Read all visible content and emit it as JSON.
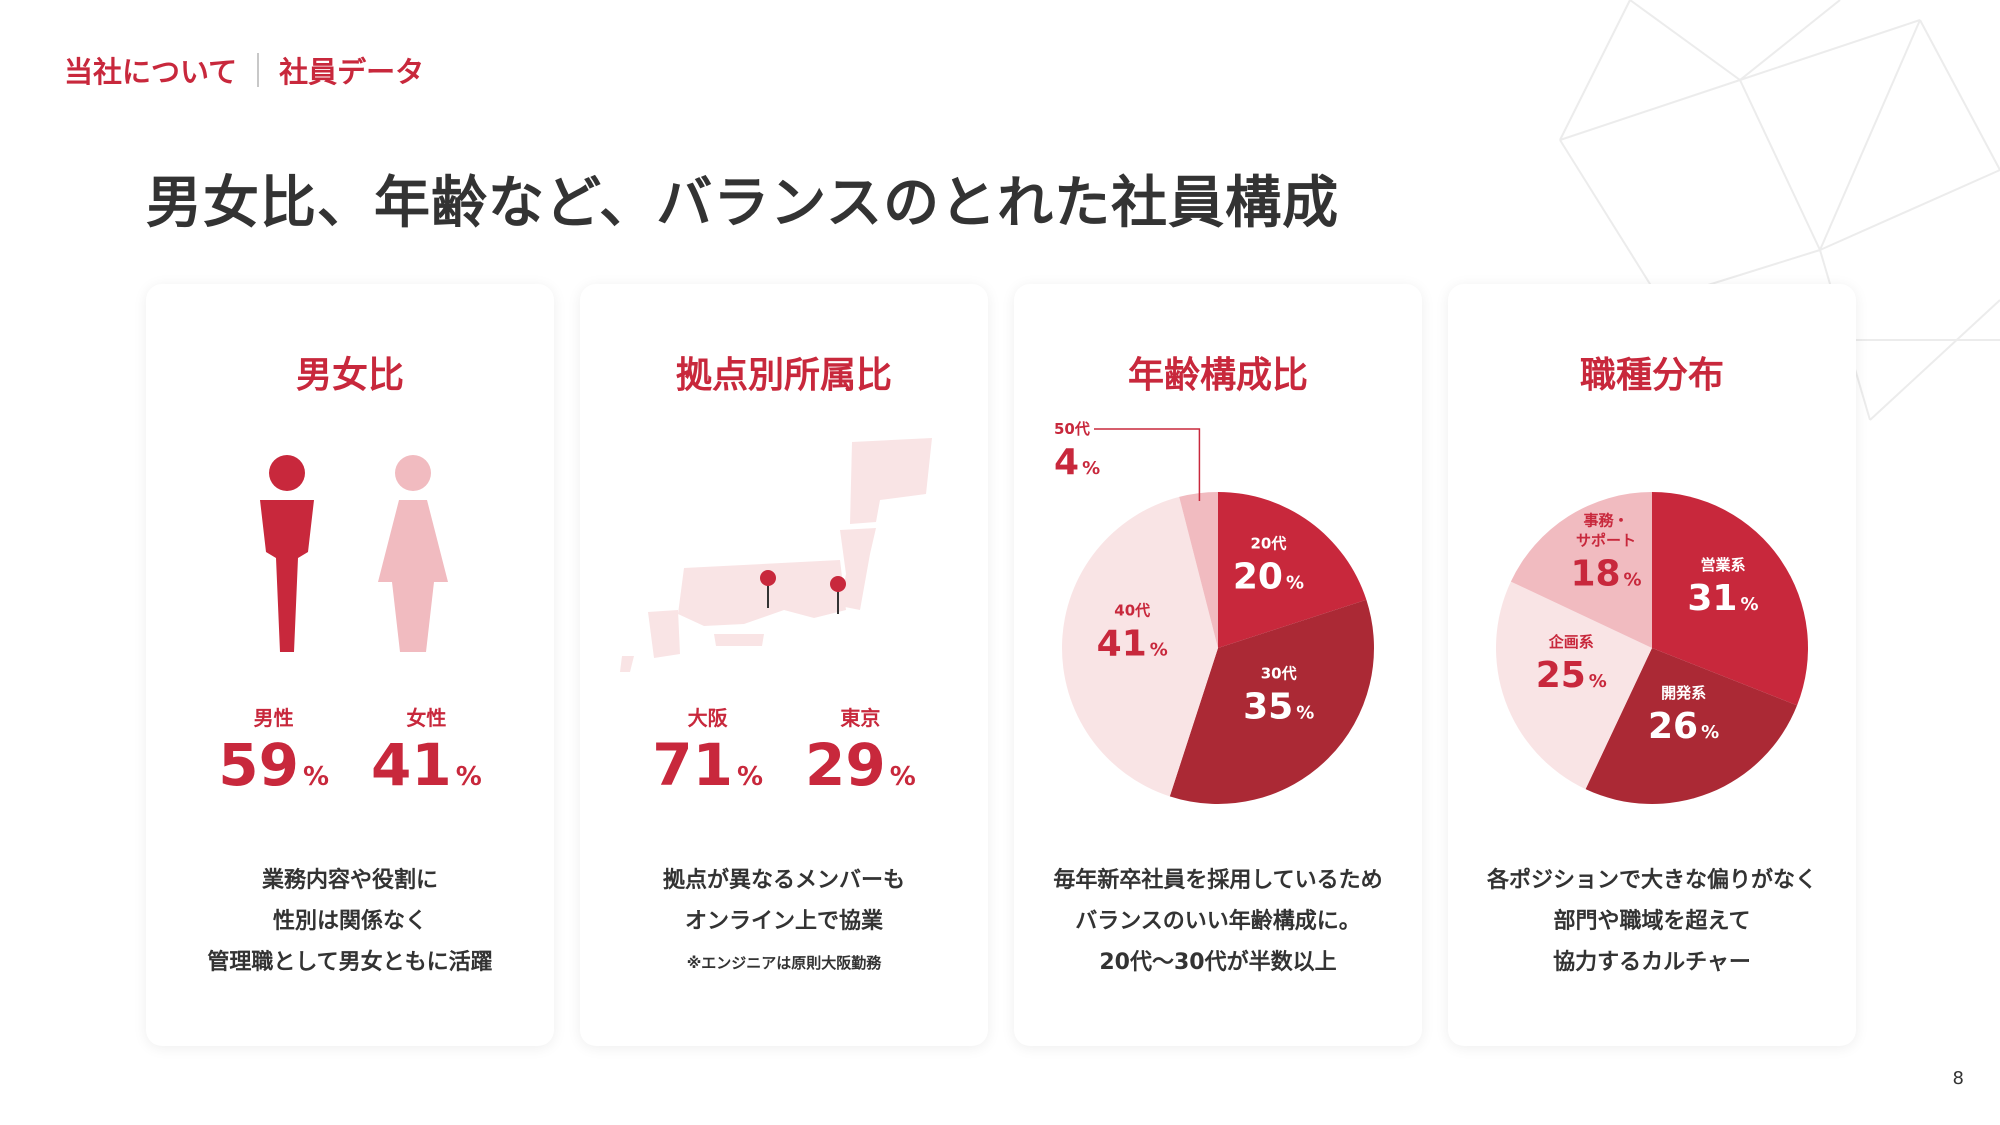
{
  "breadcrumb": {
    "section": "当社について",
    "page": "社員データ"
  },
  "title": "男女比、年齢など、バランスのとれた社員構成",
  "page_number": "8",
  "colors": {
    "accent": "#c8283c",
    "dark": "#ab2935",
    "light": "#f1bbc0",
    "lighter": "#f9e4e5"
  },
  "cards": {
    "gender": {
      "title": "男女比",
      "stats": [
        {
          "label": "男性",
          "value": "59",
          "unit": "%"
        },
        {
          "label": "女性",
          "value": "41",
          "unit": "%"
        }
      ],
      "description": [
        "業務内容や役割に",
        "性別は関係なく",
        "管理職として男女ともに活躍"
      ]
    },
    "location": {
      "title": "拠点別所属比",
      "stats": [
        {
          "label": "大阪",
          "value": "71",
          "unit": "%"
        },
        {
          "label": "東京",
          "value": "29",
          "unit": "%"
        }
      ],
      "description": [
        "拠点が異なるメンバーも",
        "オンライン上で協業"
      ],
      "note": "※エンジニアは原則大阪勤務"
    },
    "age": {
      "title": "年齢構成比",
      "description": [
        "毎年新卒社員を採用しているため",
        "バランスのいい年齢構成に。",
        "20代〜30代が半数以上"
      ]
    },
    "job": {
      "title": "職種分布",
      "description": [
        "各ポジションで大きな偏りがなく",
        "部門や職域を超えて",
        "協力するカルチャー"
      ]
    }
  },
  "chart_data": [
    {
      "type": "pie",
      "title": "年齢構成比",
      "slices": [
        {
          "label": "20代",
          "value": 20,
          "color": "#c8283c"
        },
        {
          "label": "30代",
          "value": 35,
          "color": "#ab2935"
        },
        {
          "label": "40代",
          "value": 41,
          "color": "#f9e4e5"
        },
        {
          "label": "50代",
          "value": 4,
          "color": "#f1bbc0"
        }
      ]
    },
    {
      "type": "pie",
      "title": "職種分布",
      "slices": [
        {
          "label": "営業系",
          "value": 31,
          "color": "#c8283c"
        },
        {
          "label": "開発系",
          "value": 26,
          "color": "#ab2935"
        },
        {
          "label": "企画系",
          "value": 25,
          "color": "#f9e4e5"
        },
        {
          "label": "事務・サポート",
          "value": 18,
          "color": "#f1bbc0"
        }
      ]
    }
  ]
}
